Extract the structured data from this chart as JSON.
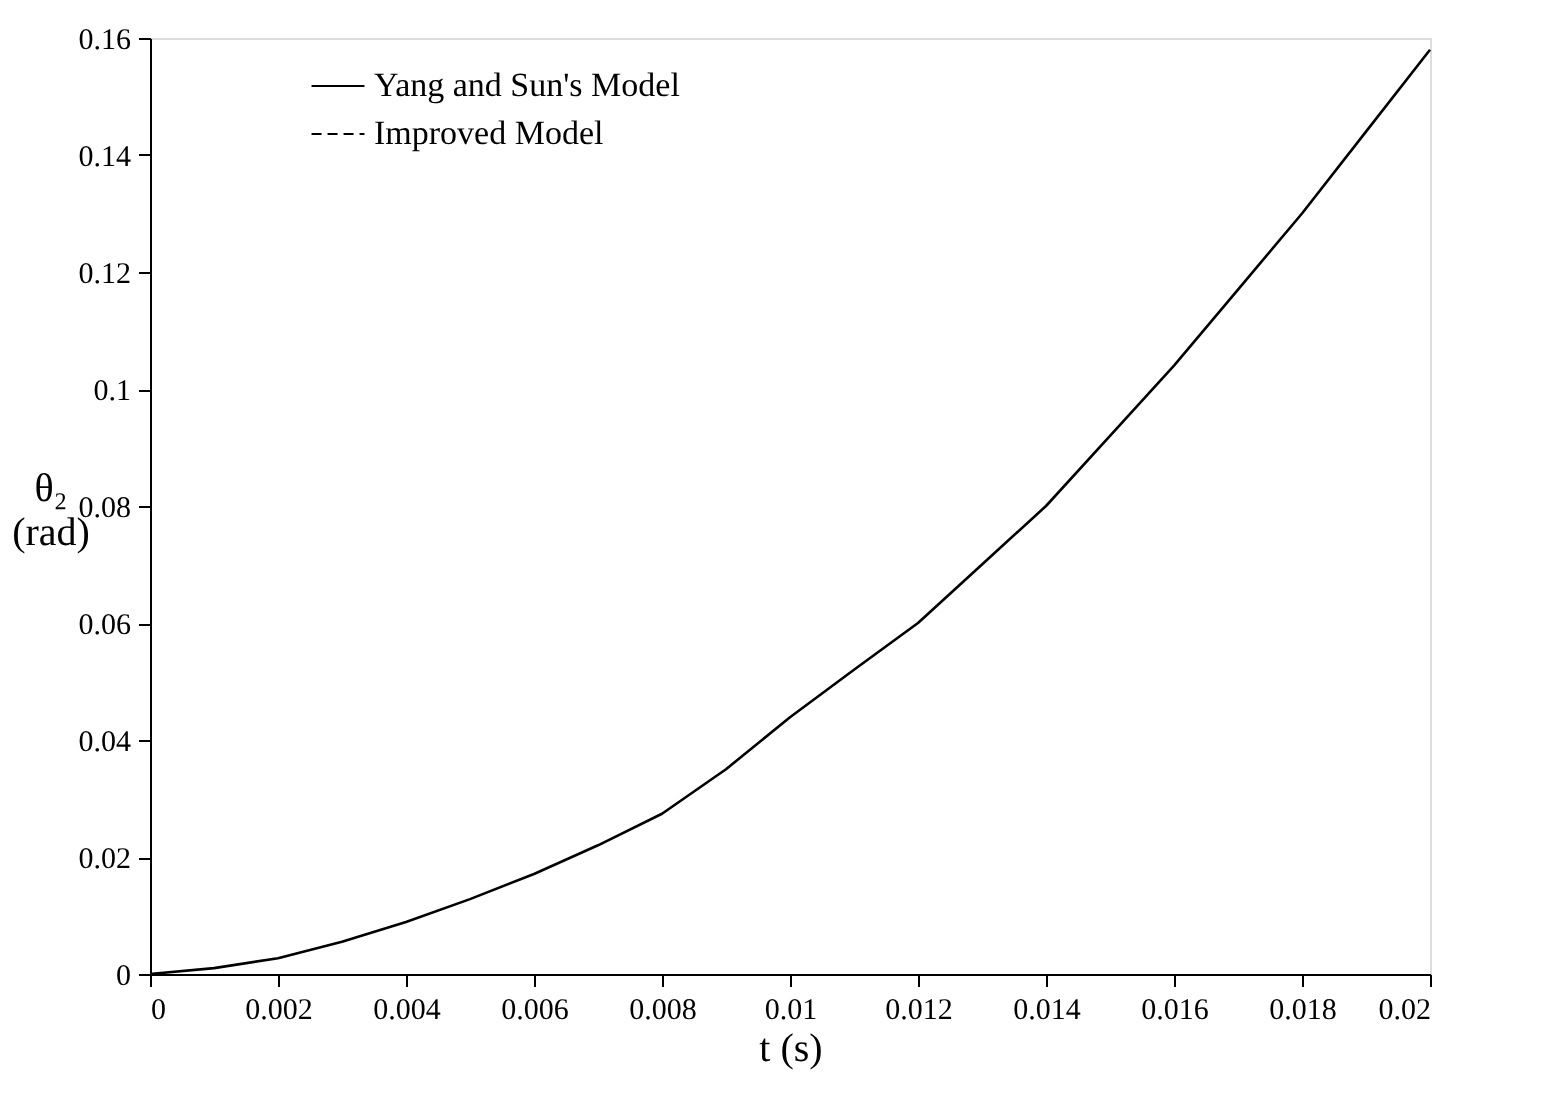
{
  "chart_data": {
    "type": "line",
    "xlabel": "t (s)",
    "ylabel": "θ₂ (rad)",
    "x": [
      0,
      0.001,
      0.002,
      0.003,
      0.004,
      0.005,
      0.006,
      0.007,
      0.008,
      0.009,
      0.01,
      0.011,
      0.012,
      0.013,
      0.014,
      0.015,
      0.016,
      0.017,
      0.018,
      0.019,
      0.02
    ],
    "series": [
      {
        "name": "Yang and Sun's Model",
        "color": "#000000",
        "line_style": "solid",
        "values": [
          0,
          0.001,
          0.0027,
          0.0055,
          0.0089,
          0.0128,
          0.0171,
          0.022,
          0.0274,
          0.035,
          0.0439,
          0.052,
          0.06,
          0.07,
          0.08,
          0.092,
          0.104,
          0.117,
          0.13,
          0.144,
          0.158
        ]
      },
      {
        "name": "Improved Model",
        "color": "#000000",
        "line_style": "dashed",
        "values": [
          null,
          null,
          null,
          null,
          null,
          null,
          null,
          null,
          null,
          null,
          null,
          null,
          null,
          null,
          null,
          null,
          null,
          null,
          null,
          null,
          null
        ]
      }
    ],
    "xlim": [
      0,
      0.02
    ],
    "xticks": [
      0,
      0.002,
      0.004,
      0.006,
      0.008,
      0.01,
      0.012,
      0.014,
      0.016,
      0.018,
      0.02
    ],
    "ylim": [
      0,
      0.16
    ],
    "yticks": [
      0,
      0.02,
      0.04,
      0.06,
      0.08,
      0.1,
      0.12,
      0.14,
      0.16
    ],
    "legend": "top left",
    "grid": false,
    "marker": "none"
  }
}
